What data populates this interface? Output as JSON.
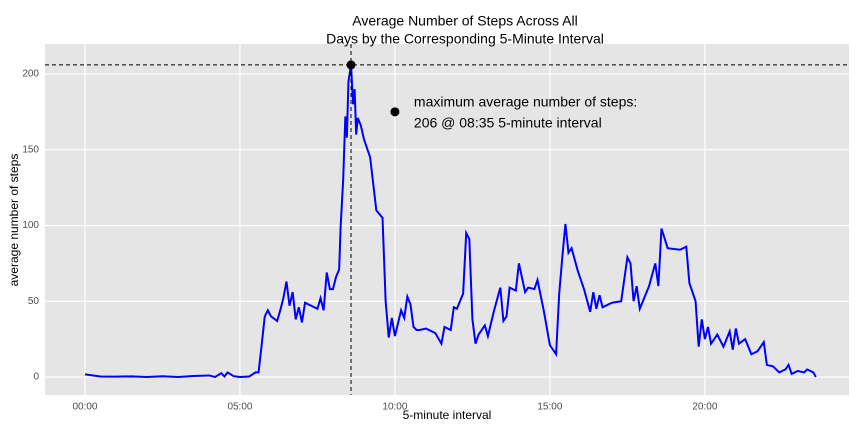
{
  "chart_data": {
    "type": "line",
    "title": [
      "Average Number of Steps Across All",
      "Days by the Corresponding 5-Minute Interval"
    ],
    "x_label": "5-minute interval",
    "y_label": "average number of steps",
    "color": "#0000ff",
    "grid": true,
    "xlim": [
      -1.29,
      24.65
    ],
    "ylim": [
      -11.9,
      219.8
    ],
    "xticks": [
      {
        "value": 0,
        "label": "00:00"
      },
      {
        "value": 5,
        "label": "05:00"
      },
      {
        "value": 10,
        "label": "10:00"
      },
      {
        "value": 15,
        "label": "15:00"
      },
      {
        "value": 20,
        "label": "20:00"
      }
    ],
    "yticks": [
      0,
      50,
      100,
      150,
      200
    ],
    "x": [
      0,
      0.5,
      1,
      1.5,
      2,
      2.5,
      3,
      3.5,
      4,
      4.2,
      4.4,
      4.5,
      4.6,
      4.8,
      5,
      5.3,
      5.5,
      5.6,
      5.7,
      5.8,
      5.9,
      6,
      6.2,
      6.3,
      6.4,
      6.5,
      6.6,
      6.7,
      6.8,
      6.9,
      7,
      7.1,
      7.3,
      7.5,
      7.6,
      7.7,
      7.8,
      7.9,
      8,
      8.1,
      8.2,
      8.25,
      8.33,
      8.4,
      8.45,
      8.5,
      8.583,
      8.65,
      8.7,
      8.75,
      8.8,
      8.9,
      9,
      9.2,
      9.4,
      9.6,
      9.7,
      9.8,
      9.9,
      10,
      10.2,
      10.3,
      10.4,
      10.5,
      10.6,
      10.7,
      10.8,
      11,
      11.3,
      11.5,
      11.6,
      11.8,
      11.9,
      12,
      12.2,
      12.3,
      12.4,
      12.5,
      12.6,
      12.7,
      12.9,
      13,
      13.2,
      13.4,
      13.5,
      13.6,
      13.7,
      13.9,
      14,
      14.2,
      14.3,
      14.5,
      14.6,
      14.8,
      15,
      15.2,
      15.3,
      15.4,
      15.5,
      15.6,
      15.7,
      15.9,
      16.1,
      16.3,
      16.4,
      16.5,
      16.6,
      16.7,
      17,
      17.3,
      17.5,
      17.6,
      17.7,
      17.8,
      17.9,
      18.1,
      18.2,
      18.4,
      18.5,
      18.6,
      18.8,
      19.2,
      19.4,
      19.5,
      19.7,
      19.8,
      19.9,
      20,
      20.1,
      20.2,
      20.4,
      20.6,
      20.8,
      20.9,
      21,
      21.1,
      21.3,
      21.5,
      21.7,
      21.9,
      22,
      22.2,
      22.4,
      22.6,
      22.7,
      22.8,
      23,
      23.2,
      23.3,
      23.5,
      23.58
    ],
    "values": [
      1.7,
      0.3,
      0.2,
      0.4,
      0,
      0.5,
      0,
      0.6,
      1,
      0,
      2.5,
      0.3,
      3,
      0.5,
      0,
      0.3,
      3,
      3,
      21,
      40,
      44,
      40,
      37,
      44,
      52,
      63,
      47,
      56,
      38,
      46,
      36,
      49,
      47,
      45,
      52,
      44,
      69,
      58,
      58,
      66,
      71,
      100,
      130,
      172,
      158,
      195,
      206,
      180,
      190,
      160,
      171,
      166,
      157,
      145,
      110,
      105,
      50,
      26,
      39,
      27,
      44,
      39,
      53,
      48,
      33,
      31,
      31,
      32,
      29,
      22,
      33,
      31,
      46,
      45,
      55,
      95,
      91,
      38,
      22,
      28,
      34,
      27,
      44,
      59,
      37,
      40,
      59,
      57,
      75,
      56,
      59,
      58,
      64,
      44,
      21,
      15,
      55,
      79,
      101,
      82,
      85,
      70,
      58,
      43,
      56,
      45,
      54,
      46,
      49,
      50,
      79,
      75,
      50,
      60,
      45,
      55,
      60,
      75,
      60,
      98,
      85,
      84,
      86,
      62,
      50,
      20,
      38,
      25,
      33,
      22,
      28,
      20,
      30,
      18,
      32,
      22,
      25,
      15,
      17,
      23,
      8,
      7,
      3,
      5,
      8,
      2,
      4,
      3,
      5,
      3,
      0
    ],
    "max_point": {
      "x": 8.583,
      "y": 206
    },
    "annotation": {
      "x": 10,
      "y": 175,
      "text": [
        "maximum average number of steps:",
        "206 @ 08:35 5-minute interval"
      ]
    }
  }
}
